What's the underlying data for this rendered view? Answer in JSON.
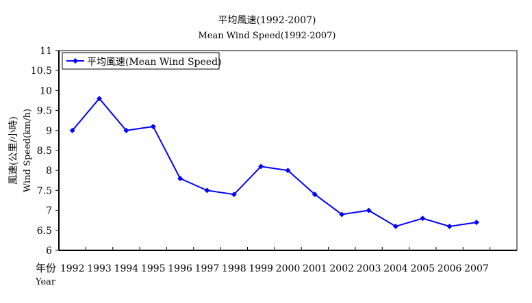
{
  "chart_data": {
    "type": "line",
    "title": "平均風速(1992-2007)",
    "subtitle": "Mean Wind Speed(1992-2007)",
    "xlabel": [
      "年份",
      "Year"
    ],
    "ylabel": [
      "風速(公里/小時)",
      "Wind Speed(km/h)"
    ],
    "ylim": [
      6,
      11
    ],
    "yticks": [
      "6",
      "6.5",
      "7",
      "7.5",
      "8",
      "8.5",
      "9",
      "9.5",
      "10",
      "10.5",
      "11"
    ],
    "grid": false,
    "legend_position": "top-left",
    "categories": [
      "1992",
      "1993",
      "1994",
      "1995",
      "1996",
      "1997",
      "1998",
      "1999",
      "2000",
      "2001",
      "2002",
      "2003",
      "2004",
      "2005",
      "2006",
      "2007"
    ],
    "series": [
      {
        "name": "平均風速(Mean Wind Speed)",
        "color": "#0000ff",
        "values": [
          9.0,
          9.8,
          9.0,
          9.1,
          7.8,
          7.5,
          7.4,
          8.1,
          8.0,
          7.4,
          6.9,
          7.0,
          6.6,
          6.8,
          6.6,
          6.7
        ]
      }
    ]
  }
}
